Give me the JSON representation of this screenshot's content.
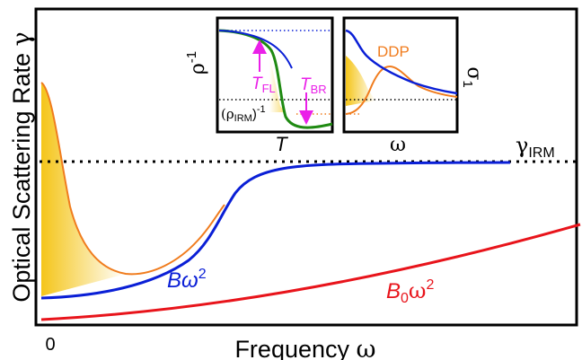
{
  "main": {
    "y_axis_label": "Optical Scattering Rate",
    "y_axis_symbol": "γ",
    "x_axis_label": "Frequency",
    "x_axis_symbol": "ω",
    "x_origin_tick": "0",
    "level_label": "γ",
    "level_label_sub": "IRM",
    "curve_label_b": "Bω",
    "curve_label_b_exp": "2",
    "curve_label_b0_base": "B",
    "curve_label_b0_sub": "0",
    "curve_label_b0_omega": "ω",
    "curve_label_b0_exp": "2"
  },
  "inset_left": {
    "y_label": "ρ",
    "y_label_exp": "-1",
    "x_label": "T",
    "rho_irm_label": "(ρ",
    "rho_irm_sub": "IRM",
    "rho_irm_close": ")",
    "rho_irm_exp": "-1",
    "t_fl": "T",
    "t_fl_sub": "FL",
    "t_br": "T",
    "t_br_sub": "BR"
  },
  "inset_right": {
    "x_label": "ω",
    "ddp_label": "DDP",
    "y_label": "σ",
    "y_label_sub": "1"
  },
  "colors": {
    "blue": "#0a1fd6",
    "red": "#e8141b",
    "orange": "#f07c1e",
    "green": "#1f8a12",
    "magenta": "#ea20e8",
    "gold": "#f4c20d"
  }
}
